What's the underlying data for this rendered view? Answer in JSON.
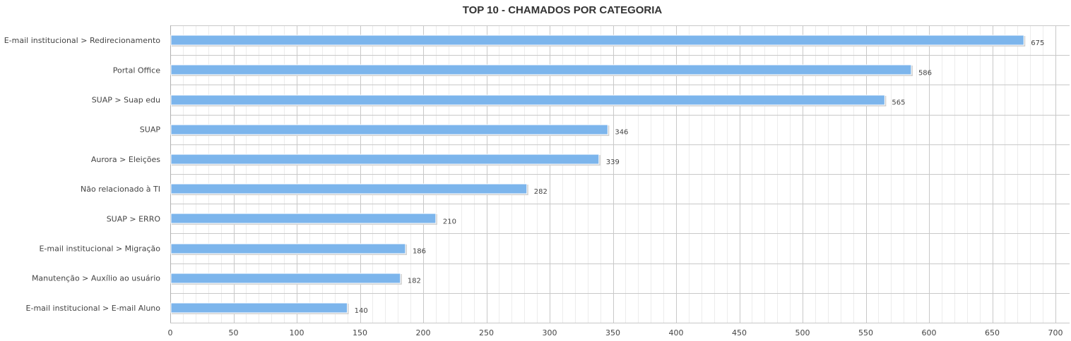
{
  "chart_data": {
    "type": "bar",
    "orientation": "horizontal",
    "title": "TOP 10 - CHAMADOS POR CATEGORIA",
    "xlabel": "",
    "ylabel": "",
    "categories": [
      "E-mail institucional > Redirecionamento",
      "Portal Office",
      "SUAP > Suap edu",
      "SUAP",
      "Aurora > Eleições",
      "Não relacionado à TI",
      "SUAP > ERRO",
      "E-mail institucional > Migração",
      "Manutenção > Auxílio ao usuário",
      "E-mail institucional > E-mail Aluno"
    ],
    "values": [
      675,
      586,
      565,
      346,
      339,
      282,
      210,
      186,
      182,
      140
    ],
    "xlim": [
      0,
      700
    ],
    "xticks": [
      0,
      50,
      100,
      150,
      200,
      250,
      300,
      350,
      400,
      450,
      500,
      550,
      600,
      650,
      700
    ],
    "grid": true,
    "data_labels": true,
    "legend": "none",
    "colors": {
      "bar": "#7cb5ec",
      "bar_shadow": "#d0d0d0",
      "major_grid": "#c8c8c8",
      "minor_grid": "#ececec",
      "title": "#333333",
      "text": "#444444"
    }
  }
}
